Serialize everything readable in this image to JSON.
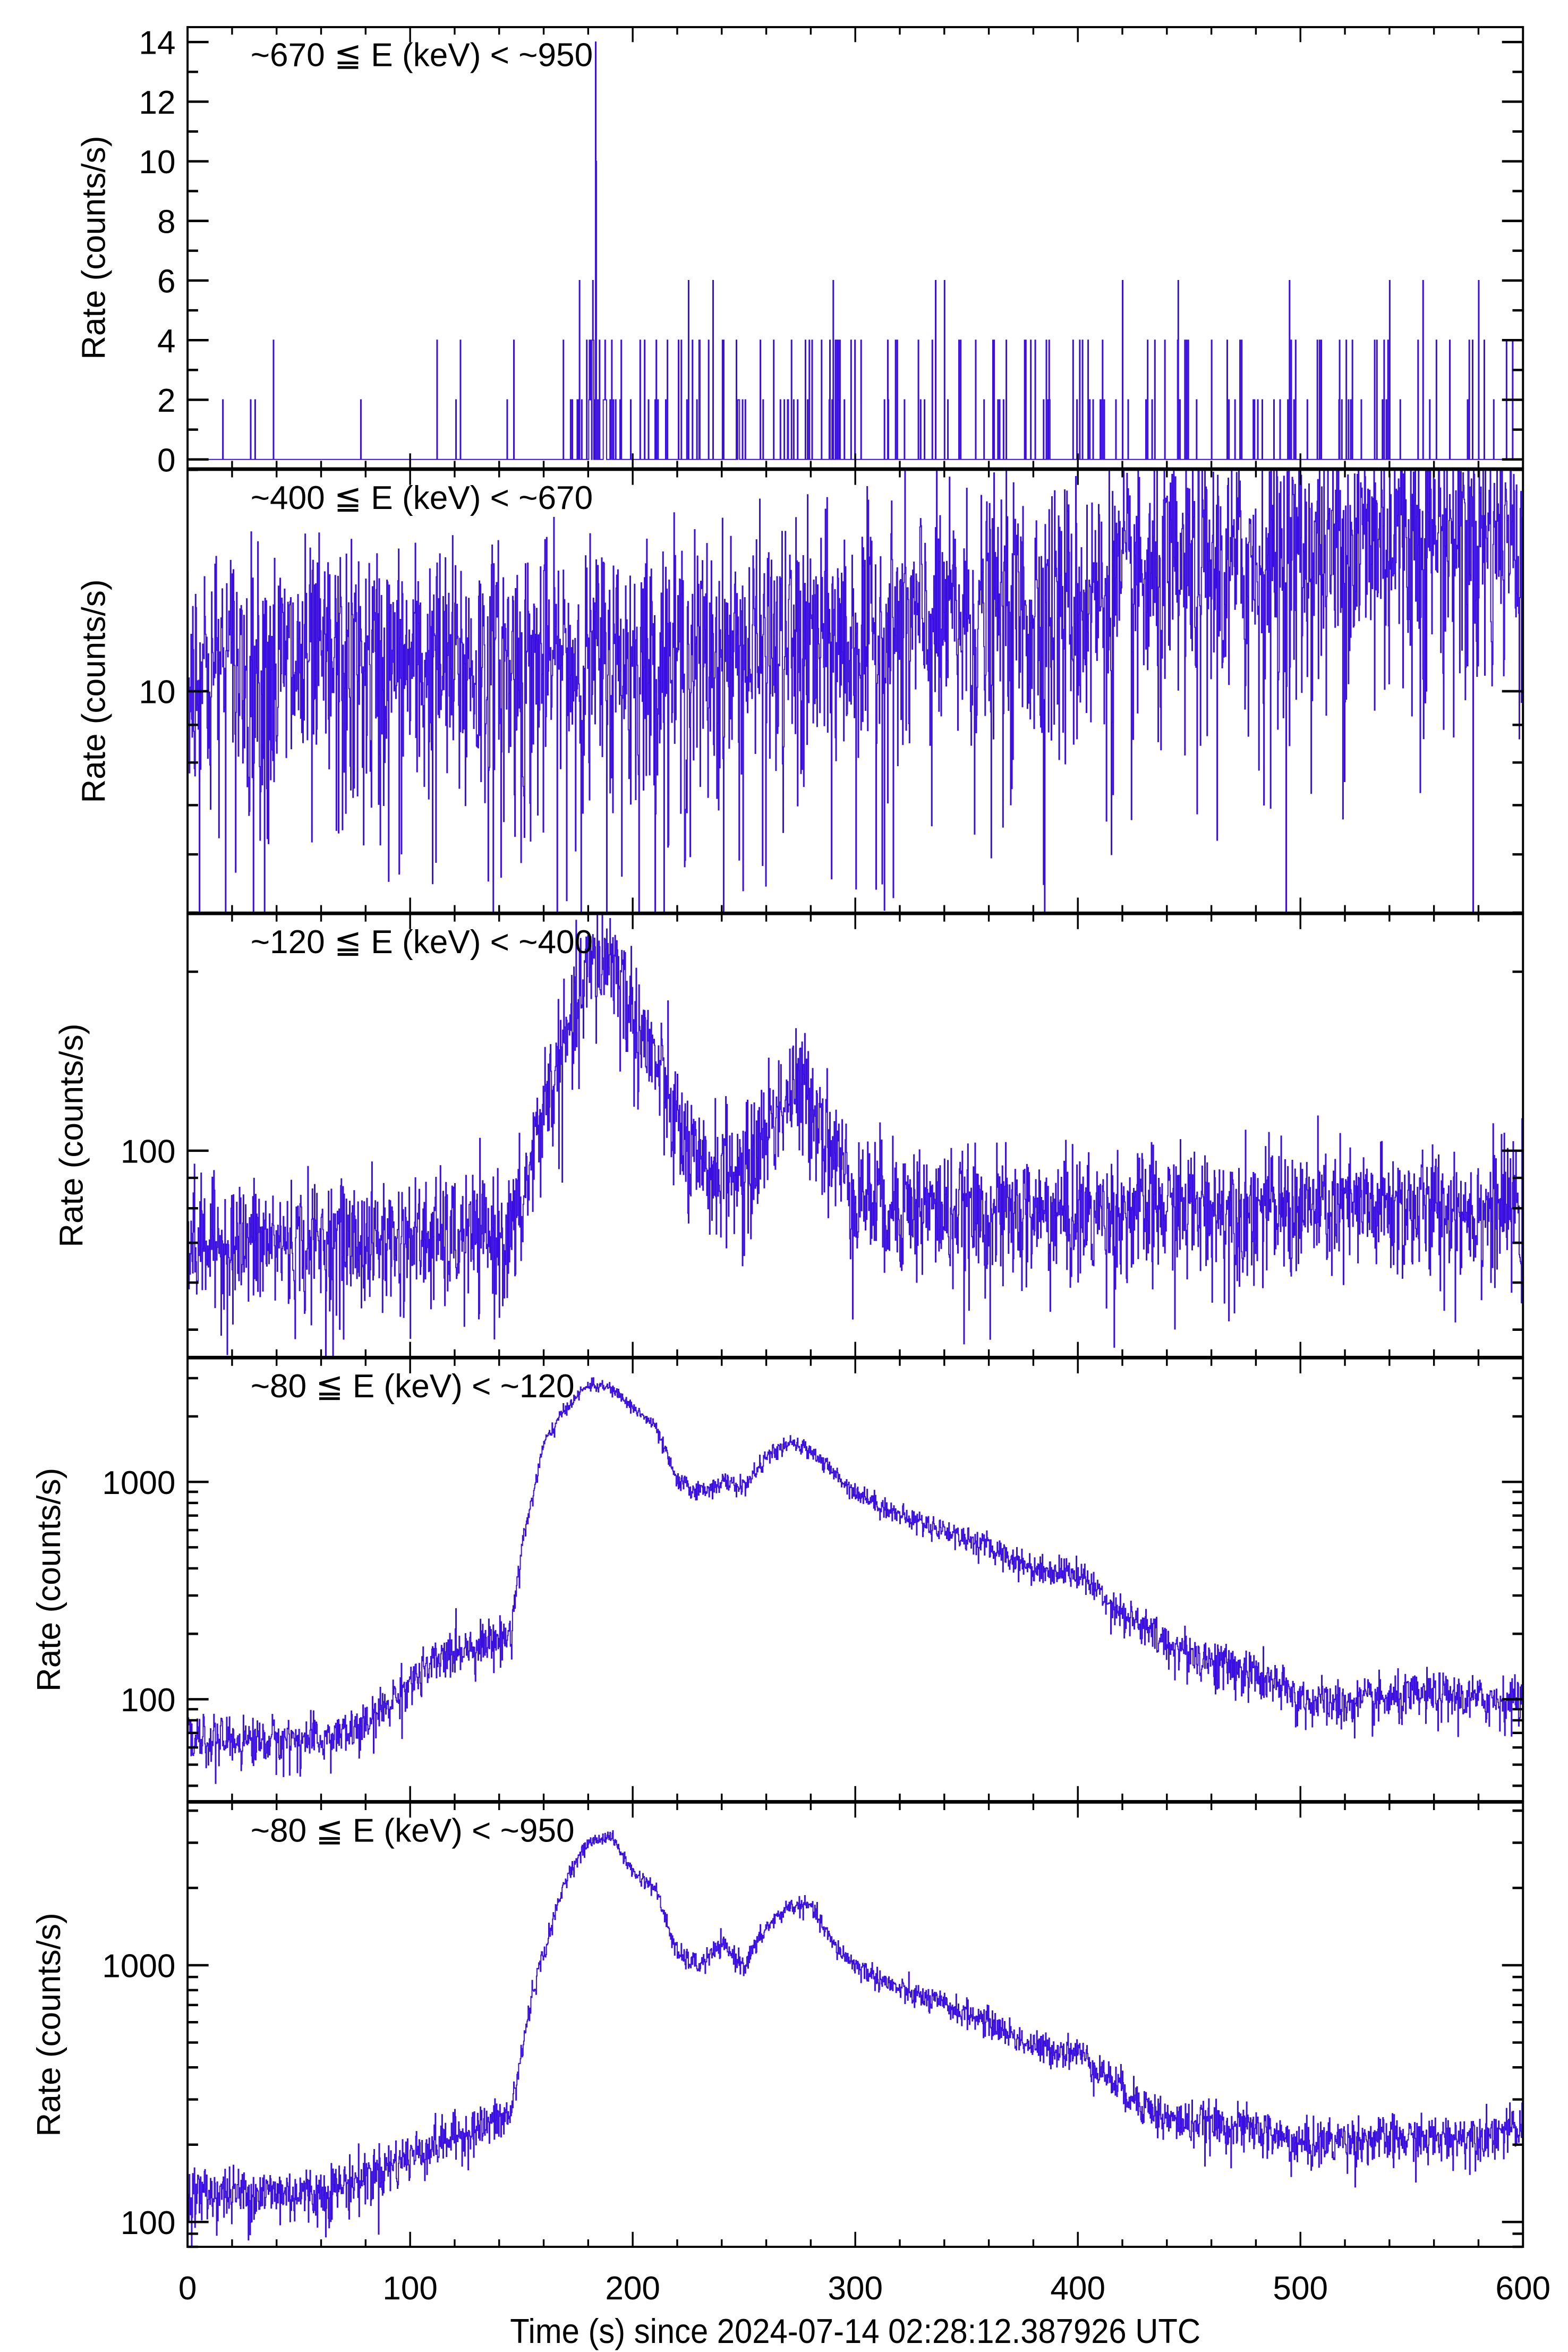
{
  "chart_data": [
    {
      "type": "line",
      "scale": "linear",
      "band_label": "~670 ≦ E (keV) < ~950",
      "ylabel": "Rate (counts/s)",
      "ylim": [
        -0.3,
        14.5
      ],
      "yticks": [
        0,
        2,
        4,
        6,
        8,
        10,
        12,
        14
      ],
      "ytick_labels": [
        "0",
        "2",
        "4",
        "6",
        "8",
        "10",
        "12",
        "14"
      ],
      "spike_events": [
        [
          183.2,
          14
        ],
        [
          183.6,
          10
        ],
        [
          176,
          6
        ],
        [
          182,
          6
        ],
        [
          225,
          6
        ],
        [
          236,
          6
        ],
        [
          290,
          6
        ],
        [
          336,
          6
        ],
        [
          340,
          6
        ],
        [
          420,
          6
        ],
        [
          445,
          6
        ],
        [
          495,
          6
        ],
        [
          540,
          6
        ],
        [
          555,
          6
        ],
        [
          580,
          6
        ]
      ],
      "x": [
        0,
        600
      ],
      "y_note_values": [
        0,
        2,
        4
      ]
    },
    {
      "type": "line",
      "scale": "log",
      "band_label": "~400 ≦ E (keV) < ~670",
      "ylabel": "Rate (counts/s)",
      "ylim": [
        5,
        20
      ],
      "yticks": [
        10
      ],
      "ytick_labels": [
        "10"
      ],
      "x": [
        0,
        50,
        100,
        150,
        200,
        250,
        300,
        350,
        400,
        450,
        500,
        550,
        600
      ],
      "y": [
        10.8,
        10.8,
        10.8,
        10.9,
        11.0,
        11.3,
        11.8,
        12.6,
        13.4,
        14.3,
        15.3,
        16.6,
        16.4
      ]
    },
    {
      "type": "line",
      "scale": "log",
      "band_label": "~120 ≦ E (keV) < ~400",
      "ylabel": "Rate (counts/s)",
      "ylim": [
        45,
        250
      ],
      "yticks": [
        100
      ],
      "ytick_labels": [
        "100"
      ],
      "x": [
        0,
        50,
        100,
        145,
        150,
        160,
        170,
        180,
        190,
        200,
        210,
        220,
        230,
        240,
        250,
        260,
        270,
        280,
        290,
        300,
        350,
        400,
        450,
        500,
        550,
        600
      ],
      "y": [
        70,
        70,
        71,
        72,
        80,
        120,
        150,
        200,
        215,
        170,
        140,
        110,
        90,
        95,
        90,
        110,
        125,
        125,
        100,
        85,
        78,
        78,
        80,
        80,
        80,
        80
      ]
    },
    {
      "type": "line",
      "scale": "log",
      "band_label": "~80 ≦ E (keV) < ~120",
      "ylabel": "Rate (counts/s)",
      "ylim": [
        34,
        3700
      ],
      "yticks": [
        100,
        1000
      ],
      "ytick_labels": [
        "100",
        "1000"
      ],
      "x": [
        0,
        60,
        80,
        100,
        120,
        140,
        145,
        150,
        160,
        170,
        180,
        190,
        200,
        210,
        220,
        230,
        240,
        250,
        260,
        270,
        280,
        290,
        300,
        320,
        340,
        360,
        380,
        400,
        420,
        440,
        460,
        480,
        500,
        520,
        540,
        560,
        580,
        600
      ],
      "y": [
        65,
        65,
        75,
        120,
        170,
        190,
        200,
        500,
        1500,
        2200,
        2800,
        2700,
        2200,
        1800,
        1000,
        900,
        1000,
        950,
        1300,
        1500,
        1400,
        1100,
        900,
        700,
        600,
        500,
        400,
        380,
        250,
        180,
        150,
        130,
        100,
        95,
        100,
        105,
        100,
        100
      ]
    },
    {
      "type": "line",
      "scale": "log",
      "band_label": "~80 ≦ E (keV) < ~950",
      "ylabel": "Rate (counts/s)",
      "ylim": [
        80,
        4300
      ],
      "yticks": [
        100,
        1000
      ],
      "ytick_labels": [
        "100",
        "1000"
      ],
      "x": [
        0,
        60,
        80,
        110,
        140,
        145,
        155,
        170,
        180,
        190,
        200,
        210,
        220,
        230,
        240,
        250,
        260,
        270,
        280,
        290,
        300,
        320,
        340,
        360,
        380,
        400,
        420,
        440,
        460,
        480,
        500,
        520,
        540,
        560,
        580,
        600
      ],
      "y": [
        130,
        130,
        150,
        200,
        250,
        260,
        800,
        2200,
        3000,
        3200,
        2300,
        2000,
        1100,
        1000,
        1200,
        1000,
        1400,
        1700,
        1700,
        1200,
        1000,
        800,
        700,
        600,
        480,
        460,
        330,
        250,
        240,
        230,
        200,
        210,
        210,
        210,
        220,
        230
      ]
    }
  ],
  "x_axis": {
    "xlim": [
      0,
      600
    ],
    "xticks": [
      0,
      100,
      200,
      300,
      400,
      500,
      600
    ],
    "xtick_labels": [
      "0",
      "100",
      "200",
      "300",
      "400",
      "500",
      "600"
    ],
    "xlabel": "Time (s) since 2024-07-14 02:28:12.387926 UTC"
  },
  "colors": {
    "series": "#3a0ee0",
    "axis": "#000000"
  }
}
